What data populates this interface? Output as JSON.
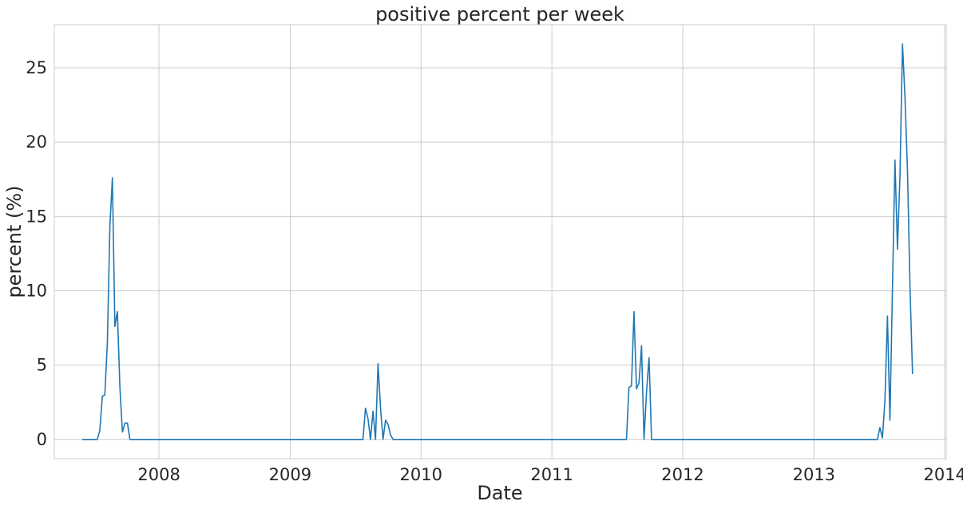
{
  "chart_data": {
    "type": "line",
    "title": "positive percent per week",
    "xlabel": "Date",
    "ylabel": "percent (%)",
    "grid": true,
    "xlim": [
      "2007-03-15",
      "2014-01-05"
    ],
    "ylim": [
      -1.3,
      27.9
    ],
    "x_ticks": [
      {
        "date": "2008-01-01",
        "label": "2008"
      },
      {
        "date": "2009-01-01",
        "label": "2009"
      },
      {
        "date": "2010-01-01",
        "label": "2010"
      },
      {
        "date": "2011-01-01",
        "label": "2011"
      },
      {
        "date": "2012-01-01",
        "label": "2012"
      },
      {
        "date": "2013-01-01",
        "label": "2013"
      },
      {
        "date": "2014-01-01",
        "label": "2014"
      }
    ],
    "y_ticks": [
      0,
      5,
      10,
      15,
      20,
      25
    ],
    "series": [
      {
        "color": "#1f77b4",
        "points": [
          [
            "2007-06-01",
            0
          ],
          [
            "2007-06-08",
            0
          ],
          [
            "2007-06-15",
            0
          ],
          [
            "2007-06-22",
            0
          ],
          [
            "2007-06-29",
            0
          ],
          [
            "2007-07-06",
            0
          ],
          [
            "2007-07-13",
            0
          ],
          [
            "2007-07-20",
            0.6
          ],
          [
            "2007-07-27",
            2.9
          ],
          [
            "2007-08-03",
            3.0
          ],
          [
            "2007-08-10",
            6.5
          ],
          [
            "2007-08-17",
            14.3
          ],
          [
            "2007-08-24",
            17.6
          ],
          [
            "2007-08-31",
            7.6
          ],
          [
            "2007-09-07",
            8.6
          ],
          [
            "2007-09-14",
            3.5
          ],
          [
            "2007-09-21",
            0.5
          ],
          [
            "2007-09-28",
            1.1
          ],
          [
            "2007-10-05",
            1.1
          ],
          [
            "2007-10-12",
            0
          ],
          [
            "2007-10-19",
            0
          ],
          [
            "2009-07-23",
            0
          ],
          [
            "2009-07-30",
            2.1
          ],
          [
            "2009-08-06",
            1.4
          ],
          [
            "2009-08-13",
            0
          ],
          [
            "2009-08-20",
            1.9
          ],
          [
            "2009-08-27",
            0
          ],
          [
            "2009-09-03",
            5.1
          ],
          [
            "2009-09-10",
            2.1
          ],
          [
            "2009-09-17",
            0
          ],
          [
            "2009-09-24",
            1.3
          ],
          [
            "2009-10-01",
            1.0
          ],
          [
            "2009-10-08",
            0.3
          ],
          [
            "2009-10-15",
            0
          ],
          [
            "2011-07-28",
            0
          ],
          [
            "2011-08-04",
            3.5
          ],
          [
            "2011-08-11",
            3.6
          ],
          [
            "2011-08-18",
            8.6
          ],
          [
            "2011-08-25",
            3.4
          ],
          [
            "2011-09-01",
            3.8
          ],
          [
            "2011-09-08",
            6.3
          ],
          [
            "2011-09-15",
            0
          ],
          [
            "2011-09-22",
            3.2
          ],
          [
            "2011-09-29",
            5.5
          ],
          [
            "2011-10-06",
            0
          ],
          [
            "2011-10-13",
            0
          ],
          [
            "2013-06-27",
            0
          ],
          [
            "2013-07-04",
            0.8
          ],
          [
            "2013-07-11",
            0.1
          ],
          [
            "2013-07-18",
            2.6
          ],
          [
            "2013-07-25",
            8.3
          ],
          [
            "2013-08-01",
            1.3
          ],
          [
            "2013-08-08",
            10.2
          ],
          [
            "2013-08-15",
            18.8
          ],
          [
            "2013-08-22",
            12.8
          ],
          [
            "2013-08-29",
            17.8
          ],
          [
            "2013-09-05",
            26.6
          ],
          [
            "2013-09-12",
            23.0
          ],
          [
            "2013-09-19",
            18.0
          ],
          [
            "2013-09-26",
            10.2
          ],
          [
            "2013-10-03",
            4.4
          ]
        ]
      }
    ]
  },
  "style": {
    "line_color": "#1f77b4",
    "grid_color": "#cccccc",
    "spine_color": "#cccccc",
    "text_color": "#262626"
  }
}
